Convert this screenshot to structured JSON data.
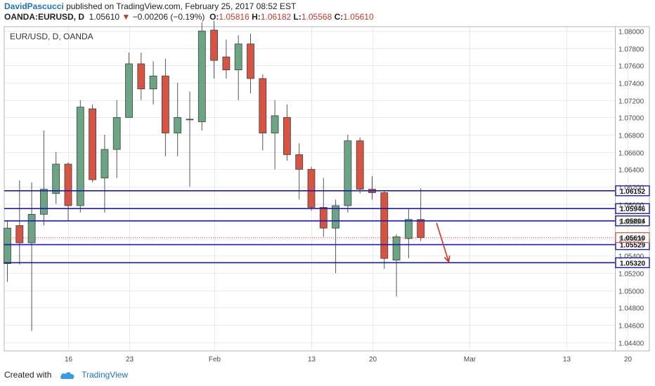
{
  "header": {
    "author": "DavidPascucci",
    "published": "published on TradingView.com, February 25, 2017 08:52 EST",
    "symbol": "OANDA:EURUSD, D",
    "last": "1.05610",
    "change": "−0.00206 (−0.19%)",
    "open_label": "O:",
    "open": "1.05816",
    "high_label": "H:",
    "high": "1.06182",
    "low_label": "L:",
    "low": "1.05568",
    "close_label": "C:",
    "close": "1.05610"
  },
  "footer": {
    "created_with": "Created with",
    "brand": "TradingView"
  },
  "colors": {
    "up": "#6ba583",
    "down": "#d75442",
    "line": "#1a1ab8",
    "arrow": "#d62b1f",
    "grid": "#e6e9ee"
  },
  "chart_data": {
    "type": "candlestick",
    "title": "EUR/USD, D, OANDA",
    "ylim": [
      1.043,
      1.0805
    ],
    "y_ticks": [
      "1.04400",
      "1.04600",
      "1.04800",
      "1.05000",
      "1.05200",
      "1.05400",
      "1.05600",
      "1.05800",
      "1.06000",
      "1.06200",
      "1.06400",
      "1.06600",
      "1.06800",
      "1.07000",
      "1.07200",
      "1.07400",
      "1.07600",
      "1.07800",
      "1.08000"
    ],
    "x_ticks": [
      {
        "label": "16",
        "index": 5
      },
      {
        "label": "23",
        "index": 10
      },
      {
        "label": "Feb",
        "index": 17
      },
      {
        "label": "13",
        "index": 25
      },
      {
        "label": "20",
        "index": 30
      },
      {
        "label": "Mar",
        "index": 38
      },
      {
        "label": "13",
        "index": 46
      },
      {
        "label": "20",
        "index": 51
      }
    ],
    "candles": [
      {
        "o": 1.0531,
        "h": 1.058,
        "l": 1.051,
        "c": 1.0572
      },
      {
        "o": 1.0575,
        "h": 1.0627,
        "l": 1.053,
        "c": 1.0555
      },
      {
        "o": 1.0555,
        "h": 1.0625,
        "l": 1.0453,
        "c": 1.0588
      },
      {
        "o": 1.0588,
        "h": 1.0685,
        "l": 1.0575,
        "c": 1.0617
      },
      {
        "o": 1.0612,
        "h": 1.066,
        "l": 1.06,
        "c": 1.0646
      },
      {
        "o": 1.0646,
        "h": 1.0648,
        "l": 1.058,
        "c": 1.0598
      },
      {
        "o": 1.0598,
        "h": 1.072,
        "l": 1.059,
        "c": 1.0712
      },
      {
        "o": 1.071,
        "h": 1.0715,
        "l": 1.0625,
        "c": 1.0628
      },
      {
        "o": 1.063,
        "h": 1.068,
        "l": 1.059,
        "c": 1.0663
      },
      {
        "o": 1.0663,
        "h": 1.072,
        "l": 1.063,
        "c": 1.07
      },
      {
        "o": 1.07,
        "h": 1.0775,
        "l": 1.07,
        "c": 1.0762
      },
      {
        "o": 1.0762,
        "h": 1.0775,
        "l": 1.072,
        "c": 1.0733
      },
      {
        "o": 1.0733,
        "h": 1.0765,
        "l": 1.0715,
        "c": 1.0748
      },
      {
        "o": 1.0748,
        "h": 1.0768,
        "l": 1.0655,
        "c": 1.0682
      },
      {
        "o": 1.0682,
        "h": 1.074,
        "l": 1.0655,
        "c": 1.07
      },
      {
        "o": 1.0698,
        "h": 1.073,
        "l": 1.062,
        "c": 1.0698
      },
      {
        "o": 1.0695,
        "h": 1.081,
        "l": 1.0685,
        "c": 1.08
      },
      {
        "o": 1.0801,
        "h": 1.0812,
        "l": 1.0745,
        "c": 1.0766
      },
      {
        "o": 1.077,
        "h": 1.079,
        "l": 1.0745,
        "c": 1.0755
      },
      {
        "o": 1.0755,
        "h": 1.0795,
        "l": 1.072,
        "c": 1.0785
      },
      {
        "o": 1.0785,
        "h": 1.0797,
        "l": 1.0728,
        "c": 1.0745
      },
      {
        "o": 1.0745,
        "h": 1.075,
        "l": 1.0662,
        "c": 1.0682
      },
      {
        "o": 1.0682,
        "h": 1.072,
        "l": 1.064,
        "c": 1.0702
      },
      {
        "o": 1.07,
        "h": 1.0715,
        "l": 1.065,
        "c": 1.0657
      },
      {
        "o": 1.0657,
        "h": 1.067,
        "l": 1.0605,
        "c": 1.064
      },
      {
        "o": 1.064,
        "h": 1.0643,
        "l": 1.0592,
        "c": 1.0596
      },
      {
        "o": 1.0596,
        "h": 1.063,
        "l": 1.0562,
        "c": 1.0572
      },
      {
        "o": 1.0572,
        "h": 1.0605,
        "l": 1.052,
        "c": 1.0598
      },
      {
        "o": 1.0598,
        "h": 1.068,
        "l": 1.059,
        "c": 1.0673
      },
      {
        "o": 1.0673,
        "h": 1.0677,
        "l": 1.0612,
        "c": 1.0617
      },
      {
        "o": 1.0617,
        "h": 1.0632,
        "l": 1.0605,
        "c": 1.0613
      },
      {
        "o": 1.0613,
        "h": 1.0616,
        "l": 1.0525,
        "c": 1.0537
      },
      {
        "o": 1.0535,
        "h": 1.0565,
        "l": 1.0493,
        "c": 1.0562
      },
      {
        "o": 1.056,
        "h": 1.0595,
        "l": 1.0537,
        "c": 1.0582
      },
      {
        "o": 1.0582,
        "h": 1.0618,
        "l": 1.0557,
        "c": 1.0561
      }
    ],
    "levels": [
      {
        "value": 1.06152,
        "label": "1.06152"
      },
      {
        "value": 1.05946,
        "label": "1.05946"
      },
      {
        "value": 1.05804,
        "label": "1.05804"
      },
      {
        "value": 1.05529,
        "label": "1.05529"
      },
      {
        "value": 1.0532,
        "label": "1.05320"
      }
    ],
    "last_price": {
      "value": 1.0561,
      "label": "1.05610"
    },
    "arrow": {
      "from_index": 35.3,
      "from_value": 1.0578,
      "to_index": 36.3,
      "to_value": 1.0533
    }
  }
}
